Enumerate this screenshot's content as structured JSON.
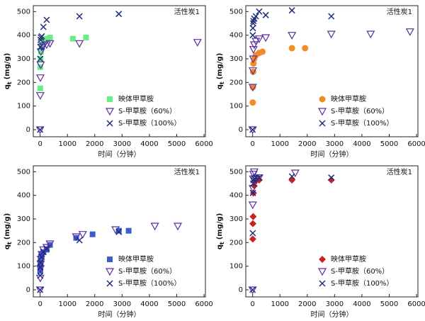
{
  "chart_data": [
    {
      "type": "scatter",
      "annotation": "活性炭1",
      "x_label": "时间（分钟）",
      "y_label": "q",
      "y_label_sub": "t",
      "y_label_unit": "(mg/g)",
      "xlim": [
        -250,
        6050
      ],
      "ylim": [
        -30,
        525
      ],
      "xticks": [
        0,
        1000,
        2000,
        3000,
        4000,
        5000,
        6000
      ],
      "yticks": [
        0,
        100,
        200,
        300,
        400,
        500
      ],
      "legend": "lower right",
      "series": [
        {
          "name": "映体甲草胺",
          "color": "#66ee88",
          "marker": "square",
          "x": [
            5,
            10,
            15,
            30,
            60,
            120,
            240,
            360,
            1200,
            1680
          ],
          "y": [
            175,
            265,
            300,
            330,
            360,
            375,
            385,
            390,
            385,
            390
          ]
        },
        {
          "name": "S-甲草胺（60%）",
          "color": "#5a2ca0",
          "marker": "triangle-down",
          "x": [
            0,
            5,
            10,
            20,
            30,
            60,
            120,
            240,
            360,
            1440,
            5760
          ],
          "y": [
            0,
            145,
            220,
            275,
            330,
            350,
            355,
            360,
            365,
            365,
            370
          ]
        },
        {
          "name": "S-甲草胺（100%）",
          "color": "#1f2d7a",
          "marker": "x",
          "x": [
            0,
            5,
            10,
            20,
            30,
            60,
            120,
            240,
            1440,
            2880
          ],
          "y": [
            0,
            300,
            350,
            380,
            390,
            395,
            435,
            465,
            480,
            490
          ]
        }
      ]
    },
    {
      "type": "scatter",
      "annotation": "活性炭1",
      "x_label": "时间（分钟）",
      "y_label": "q",
      "y_label_sub": "t",
      "y_label_unit": "(mg/g)",
      "xlim": [
        -250,
        6050
      ],
      "ylim": [
        -30,
        525
      ],
      "xticks": [
        0,
        1000,
        2000,
        3000,
        4000,
        5000,
        6000
      ],
      "yticks": [
        0,
        100,
        200,
        300,
        400,
        500
      ],
      "legend": "lower right",
      "series": [
        {
          "name": "映体甲草胺",
          "color": "#f28c28",
          "marker": "circle",
          "x": [
            5,
            10,
            20,
            30,
            60,
            120,
            240,
            360,
            1440,
            1920
          ],
          "y": [
            115,
            180,
            245,
            280,
            300,
            315,
            325,
            330,
            345,
            345
          ]
        },
        {
          "name": "S-甲草胺（60%）",
          "color": "#5a2ca0",
          "marker": "triangle-down",
          "x": [
            0,
            5,
            10,
            20,
            30,
            60,
            120,
            240,
            480,
            1440,
            2880,
            4320,
            5760
          ],
          "y": [
            0,
            180,
            250,
            300,
            340,
            360,
            375,
            385,
            390,
            400,
            405,
            405,
            415
          ]
        },
        {
          "name": "S-甲草胺（100%）",
          "color": "#1f2d7a",
          "marker": "x",
          "x": [
            0,
            5,
            10,
            20,
            30,
            60,
            120,
            240,
            480,
            1440,
            2880
          ],
          "y": [
            0,
            400,
            430,
            450,
            460,
            470,
            480,
            500,
            485,
            505,
            480
          ]
        }
      ]
    },
    {
      "type": "scatter",
      "annotation": "活性炭1",
      "x_label": "时间（分钟）",
      "y_label": "q",
      "y_label_sub": "t",
      "y_label_unit": "(mg/g)",
      "xlim": [
        -250,
        6050
      ],
      "ylim": [
        -30,
        525
      ],
      "xticks": [
        0,
        1000,
        2000,
        3000,
        4000,
        5000,
        6000
      ],
      "yticks": [
        0,
        100,
        200,
        300,
        400,
        500
      ],
      "legend": "lower right",
      "series": [
        {
          "name": "映体甲草胺",
          "color": "#3a5fcd",
          "marker": "square",
          "x": [
            5,
            10,
            20,
            30,
            60,
            120,
            240,
            360,
            1320,
            1920,
            2880,
            3240
          ],
          "y": [
            80,
            100,
            120,
            140,
            150,
            160,
            170,
            190,
            220,
            235,
            250,
            250
          ]
        },
        {
          "name": "S-甲草胺（60%）",
          "color": "#5a2ca0",
          "marker": "triangle-down",
          "x": [
            0,
            5,
            10,
            20,
            30,
            60,
            120,
            240,
            360,
            1320,
            1560,
            2760,
            4200,
            5040
          ],
          "y": [
            0,
            50,
            90,
            110,
            130,
            150,
            170,
            180,
            195,
            225,
            235,
            255,
            270,
            270
          ]
        },
        {
          "name": "S-甲草胺（100%）",
          "color": "#1f2d7a",
          "marker": "x",
          "x": [
            0,
            5,
            10,
            20,
            60,
            120,
            240,
            1440,
            2880
          ],
          "y": [
            0,
            60,
            95,
            115,
            140,
            160,
            175,
            210,
            245
          ]
        }
      ]
    },
    {
      "type": "scatter",
      "annotation": "活性炭1",
      "x_label": "时间（分钟）",
      "y_label": "q",
      "y_label_sub": "t",
      "y_label_unit": "(mg/g)",
      "xlim": [
        -250,
        6050
      ],
      "ylim": [
        -30,
        525
      ],
      "xticks": [
        0,
        1000,
        2000,
        3000,
        4000,
        5000,
        6000
      ],
      "yticks": [
        0,
        100,
        200,
        300,
        400,
        500
      ],
      "legend": "lower right",
      "series": [
        {
          "name": "映体甲草胺",
          "color": "#cc1f1f",
          "marker": "diamond",
          "x": [
            5,
            10,
            20,
            30,
            60,
            120,
            240,
            1440,
            2880
          ],
          "y": [
            215,
            280,
            310,
            410,
            440,
            460,
            465,
            465,
            465
          ]
        },
        {
          "name": "S-甲草胺（60%）",
          "color": "#5a2ca0",
          "marker": "triangle-down",
          "x": [
            0,
            5,
            10,
            20,
            30,
            60,
            120,
            240,
            1560
          ],
          "y": [
            0,
            360,
            430,
            470,
            490,
            500,
            470,
            475,
            495
          ]
        },
        {
          "name": "S-甲草胺（100%）",
          "color": "#1f2d7a",
          "marker": "x",
          "x": [
            0,
            5,
            10,
            20,
            30,
            60,
            120,
            240,
            1440,
            2880
          ],
          "y": [
            0,
            240,
            410,
            450,
            465,
            470,
            475,
            475,
            480,
            475
          ]
        }
      ]
    }
  ]
}
